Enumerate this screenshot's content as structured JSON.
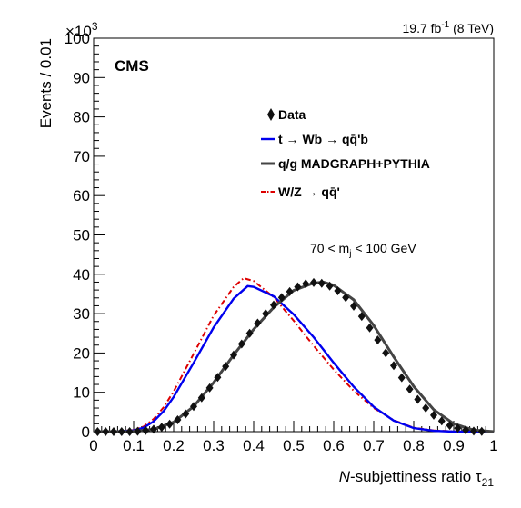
{
  "chart_data": {
    "type": "line",
    "x_range": [
      0,
      1
    ],
    "y_range": [
      0,
      100
    ],
    "y_exponent_label": "×10",
    "y_exponent": "3",
    "xlabel_italic": "N",
    "xlabel_rest": "-subjettiness ratio τ",
    "xlabel_sub": "21",
    "ylabel": "Events / 0.01",
    "x_ticks": [
      "0",
      "0.1",
      "0.2",
      "0.3",
      "0.4",
      "0.5",
      "0.6",
      "0.7",
      "0.8",
      "0.9",
      "1"
    ],
    "x_tick_values": [
      0,
      0.1,
      0.2,
      0.3,
      0.4,
      0.5,
      0.6,
      0.7,
      0.8,
      0.9,
      1.0
    ],
    "y_ticks": [
      "0",
      "10",
      "20",
      "30",
      "40",
      "50",
      "60",
      "70",
      "80",
      "90",
      "100"
    ],
    "y_tick_values": [
      0,
      10,
      20,
      30,
      40,
      50,
      60,
      70,
      80,
      90,
      100
    ],
    "experiment": "CMS",
    "lumi_main": "19.7 fb",
    "lumi_sup": "-1",
    "lumi_energy": " (8 TeV)",
    "cut_prefix": "70 < m",
    "cut_sub": "j",
    "cut_suffix": " < 100 GeV",
    "legend": {
      "data": "Data",
      "top": "t → Wb → qq̄'b",
      "qcd": "q/g MADGRAPH+PYTHIA",
      "wz": "W/Z → qq̄'"
    },
    "colors": {
      "top": "#0000ee",
      "qcd": "#444444",
      "wz": "#dd0000",
      "data": "#111111"
    },
    "series": {
      "data": {
        "x": [
          0.01,
          0.03,
          0.05,
          0.07,
          0.09,
          0.11,
          0.13,
          0.15,
          0.17,
          0.19,
          0.21,
          0.23,
          0.25,
          0.27,
          0.29,
          0.31,
          0.33,
          0.35,
          0.37,
          0.39,
          0.41,
          0.43,
          0.45,
          0.47,
          0.49,
          0.51,
          0.53,
          0.55,
          0.57,
          0.59,
          0.61,
          0.63,
          0.65,
          0.67,
          0.69,
          0.71,
          0.73,
          0.75,
          0.77,
          0.79,
          0.81,
          0.83,
          0.85,
          0.87,
          0.89,
          0.91,
          0.93,
          0.95,
          0.97
        ],
        "y": [
          0,
          0,
          0,
          0,
          0,
          0.1,
          0.3,
          0.6,
          1.1,
          1.9,
          3.0,
          4.5,
          6.4,
          8.6,
          11.1,
          13.8,
          16.6,
          19.5,
          22.3,
          25.0,
          27.6,
          30.0,
          32.2,
          34.1,
          35.6,
          36.8,
          37.6,
          37.9,
          37.7,
          37.0,
          35.8,
          34.1,
          31.9,
          29.3,
          26.4,
          23.3,
          20.0,
          16.8,
          13.7,
          10.8,
          8.2,
          6.0,
          4.2,
          2.7,
          1.6,
          0.9,
          0.4,
          0.15,
          0.05
        ]
      },
      "qcd": {
        "x": [
          0,
          0.05,
          0.1,
          0.15,
          0.2,
          0.25,
          0.3,
          0.35,
          0.4,
          0.45,
          0.5,
          0.55,
          0.575,
          0.6,
          0.65,
          0.7,
          0.75,
          0.8,
          0.85,
          0.9,
          0.95,
          1.0
        ],
        "y": [
          0,
          0,
          0.1,
          0.6,
          2.4,
          6.4,
          12.5,
          19.5,
          26.0,
          31.6,
          35.9,
          37.8,
          38.0,
          37.2,
          33.5,
          27.0,
          19.0,
          11.5,
          5.6,
          2.0,
          0.4,
          0
        ]
      },
      "top": {
        "x": [
          0,
          0.05,
          0.1,
          0.125,
          0.15,
          0.175,
          0.2,
          0.25,
          0.3,
          0.35,
          0.385,
          0.4,
          0.45,
          0.5,
          0.55,
          0.6,
          0.65,
          0.7,
          0.75,
          0.8,
          0.85,
          0.9,
          0.95,
          1.0
        ],
        "y": [
          0,
          0,
          0.3,
          1.0,
          2.6,
          5.2,
          8.8,
          17.5,
          26.5,
          33.8,
          37.0,
          36.8,
          34.4,
          29.8,
          24.0,
          17.5,
          11.4,
          6.3,
          2.8,
          0.9,
          0.2,
          0,
          0,
          0
        ]
      },
      "wz": {
        "x": [
          0,
          0.05,
          0.1,
          0.125,
          0.15,
          0.175,
          0.2,
          0.25,
          0.3,
          0.35,
          0.375,
          0.4,
          0.45,
          0.5,
          0.55,
          0.6,
          0.65,
          0.7,
          0.75,
          0.8,
          0.85,
          0.9,
          0.95,
          1.0
        ],
        "y": [
          0,
          0,
          0.4,
          1.3,
          3.2,
          6.2,
          10.2,
          19.8,
          29.5,
          36.8,
          39.0,
          38.3,
          34.2,
          28.2,
          21.8,
          15.8,
          10.4,
          6.0,
          2.9,
          1.0,
          0.3,
          0.1,
          0,
          0
        ]
      }
    }
  }
}
